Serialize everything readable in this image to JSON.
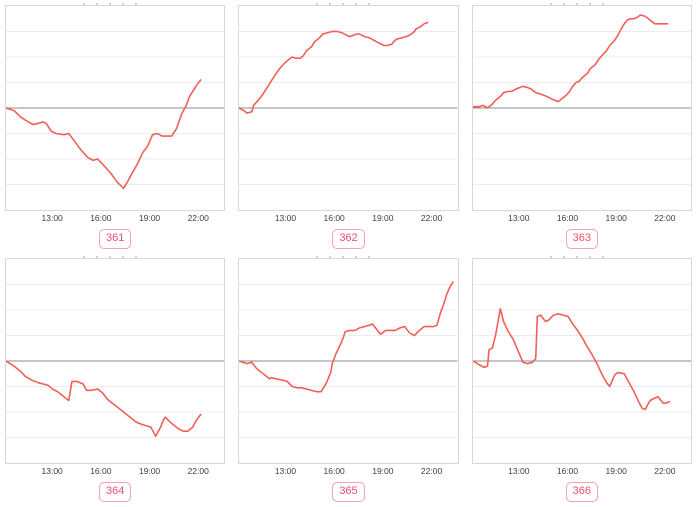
{
  "colors": {
    "line": "#f05f58",
    "gridline": "#ededed",
    "baseline": "#8c8c8c",
    "panel_border": "#d8d8d8",
    "tick_label": "#3d3d3d",
    "badge_text": "#e8506a",
    "badge_border": "#f5a0b8",
    "background": "#ffffff"
  },
  "layout_note": "grid of 6 sparkline charts, 3 columns x 2 rows, each with clipped title above, x time axis, mid gray baseline, red series line, pink numbered badge below",
  "chart_data": [
    {
      "type": "line",
      "label": "361",
      "x_tick_labels": [
        "13:00",
        "16:00",
        "19:00",
        "22:00"
      ],
      "x_ticks_hours": [
        13,
        16,
        19,
        22
      ],
      "x_range_hours": [
        10.0,
        23.5
      ],
      "y_unit": "grid divisions relative to baseline (no y labels visible)",
      "ylim": [
        -4,
        4
      ],
      "baseline": 0,
      "grid": "horizontal only, 8 divisions, baseline darker",
      "legend": "none",
      "points": [
        [
          10.1,
          0
        ],
        [
          10.6,
          -0.1
        ],
        [
          11.0,
          -0.35
        ],
        [
          11.5,
          -0.55
        ],
        [
          11.8,
          -0.65
        ],
        [
          12.1,
          -0.6
        ],
        [
          12.4,
          -0.55
        ],
        [
          12.6,
          -0.6
        ],
        [
          12.9,
          -0.9
        ],
        [
          13.2,
          -1.0
        ],
        [
          13.7,
          -1.05
        ],
        [
          14.0,
          -1.0
        ],
        [
          14.3,
          -1.25
        ],
        [
          14.7,
          -1.6
        ],
        [
          15.2,
          -1.95
        ],
        [
          15.5,
          -2.05
        ],
        [
          15.8,
          -2.0
        ],
        [
          16.1,
          -2.2
        ],
        [
          16.6,
          -2.55
        ],
        [
          17.0,
          -2.9
        ],
        [
          17.4,
          -3.15
        ],
        [
          17.6,
          -2.95
        ],
        [
          17.9,
          -2.6
        ],
        [
          18.3,
          -2.15
        ],
        [
          18.6,
          -1.75
        ],
        [
          18.9,
          -1.5
        ],
        [
          19.2,
          -1.05
        ],
        [
          19.5,
          -1.0
        ],
        [
          19.8,
          -1.1
        ],
        [
          20.1,
          -1.1
        ],
        [
          20.4,
          -1.1
        ],
        [
          20.7,
          -0.8
        ],
        [
          21.0,
          -0.25
        ],
        [
          21.3,
          0.1
        ],
        [
          21.5,
          0.45
        ],
        [
          21.8,
          0.75
        ],
        [
          22.0,
          0.95
        ],
        [
          22.2,
          1.1
        ]
      ]
    },
    {
      "type": "line",
      "label": "362",
      "x_tick_labels": [
        "13:00",
        "16:00",
        "19:00",
        "22:00"
      ],
      "x_ticks_hours": [
        13,
        16,
        19,
        22
      ],
      "x_range_hours": [
        10.0,
        23.5
      ],
      "y_unit": "grid divisions relative to baseline (no y labels visible)",
      "ylim": [
        -4,
        4
      ],
      "baseline": 0,
      "grid": "horizontal only, 8 divisions, baseline darker",
      "legend": "none",
      "points": [
        [
          10.1,
          0
        ],
        [
          10.4,
          -0.1
        ],
        [
          10.6,
          -0.2
        ],
        [
          10.9,
          -0.15
        ],
        [
          11.0,
          0.1
        ],
        [
          11.3,
          0.3
        ],
        [
          11.6,
          0.55
        ],
        [
          11.8,
          0.75
        ],
        [
          12.1,
          1.05
        ],
        [
          12.4,
          1.35
        ],
        [
          12.7,
          1.6
        ],
        [
          13.0,
          1.8
        ],
        [
          13.2,
          1.9
        ],
        [
          13.4,
          2.0
        ],
        [
          13.6,
          1.95
        ],
        [
          13.9,
          1.95
        ],
        [
          14.1,
          2.05
        ],
        [
          14.3,
          2.25
        ],
        [
          14.6,
          2.4
        ],
        [
          14.8,
          2.6
        ],
        [
          15.1,
          2.75
        ],
        [
          15.3,
          2.9
        ],
        [
          15.6,
          2.95
        ],
        [
          15.9,
          3.0
        ],
        [
          16.2,
          3.0
        ],
        [
          16.5,
          2.95
        ],
        [
          16.8,
          2.85
        ],
        [
          17.0,
          2.8
        ],
        [
          17.2,
          2.85
        ],
        [
          17.4,
          2.9
        ],
        [
          17.6,
          2.9
        ],
        [
          17.9,
          2.8
        ],
        [
          18.2,
          2.75
        ],
        [
          18.5,
          2.65
        ],
        [
          18.8,
          2.55
        ],
        [
          19.1,
          2.45
        ],
        [
          19.3,
          2.45
        ],
        [
          19.6,
          2.5
        ],
        [
          19.7,
          2.6
        ],
        [
          19.9,
          2.7
        ],
        [
          20.2,
          2.75
        ],
        [
          20.5,
          2.8
        ],
        [
          20.8,
          2.9
        ],
        [
          21.0,
          3.0
        ],
        [
          21.1,
          3.1
        ],
        [
          21.4,
          3.2
        ],
        [
          21.6,
          3.3
        ],
        [
          21.8,
          3.35
        ]
      ]
    },
    {
      "type": "line",
      "label": "363",
      "x_tick_labels": [
        "13:00",
        "16:00",
        "19:00",
        "22:00"
      ],
      "x_ticks_hours": [
        13,
        16,
        19,
        22
      ],
      "x_range_hours": [
        10.0,
        23.5
      ],
      "y_unit": "grid divisions relative to baseline (no y labels visible)",
      "ylim": [
        -4,
        4
      ],
      "baseline": 0,
      "grid": "horizontal only, 8 divisions, baseline darker",
      "legend": "none",
      "points": [
        [
          10.1,
          0.05
        ],
        [
          10.5,
          0.05
        ],
        [
          10.7,
          0.1
        ],
        [
          10.9,
          0.05
        ],
        [
          11.0,
          0
        ],
        [
          11.3,
          0.15
        ],
        [
          11.5,
          0.3
        ],
        [
          11.8,
          0.45
        ],
        [
          12.0,
          0.6
        ],
        [
          12.3,
          0.65
        ],
        [
          12.5,
          0.65
        ],
        [
          12.8,
          0.75
        ],
        [
          13.0,
          0.8
        ],
        [
          13.2,
          0.85
        ],
        [
          13.5,
          0.8
        ],
        [
          13.7,
          0.75
        ],
        [
          14.0,
          0.6
        ],
        [
          14.3,
          0.55
        ],
        [
          14.7,
          0.45
        ],
        [
          15.0,
          0.35
        ],
        [
          15.2,
          0.3
        ],
        [
          15.4,
          0.25
        ],
        [
          15.6,
          0.35
        ],
        [
          15.9,
          0.5
        ],
        [
          16.1,
          0.65
        ],
        [
          16.3,
          0.85
        ],
        [
          16.5,
          1.0
        ],
        [
          16.7,
          1.05
        ],
        [
          16.9,
          1.2
        ],
        [
          17.2,
          1.35
        ],
        [
          17.4,
          1.55
        ],
        [
          17.7,
          1.7
        ],
        [
          17.9,
          1.9
        ],
        [
          18.1,
          2.05
        ],
        [
          18.4,
          2.25
        ],
        [
          18.6,
          2.45
        ],
        [
          18.9,
          2.65
        ],
        [
          19.1,
          2.85
        ],
        [
          19.3,
          3.1
        ],
        [
          19.5,
          3.3
        ],
        [
          19.7,
          3.45
        ],
        [
          19.9,
          3.5
        ],
        [
          20.1,
          3.5
        ],
        [
          20.3,
          3.55
        ],
        [
          20.5,
          3.65
        ],
        [
          20.8,
          3.6
        ],
        [
          21.0,
          3.5
        ],
        [
          21.2,
          3.4
        ],
        [
          21.4,
          3.3
        ],
        [
          21.7,
          3.3
        ],
        [
          21.9,
          3.3
        ],
        [
          22.2,
          3.3
        ]
      ]
    },
    {
      "type": "line",
      "label": "364",
      "x_tick_labels": [
        "13:00",
        "16:00",
        "19:00",
        "22:00"
      ],
      "x_ticks_hours": [
        13,
        16,
        19,
        22
      ],
      "x_range_hours": [
        10.0,
        23.5
      ],
      "y_unit": "grid divisions relative to baseline (no y labels visible)",
      "ylim": [
        -4,
        4
      ],
      "baseline": 0,
      "grid": "horizontal only, 8 divisions, baseline darker",
      "legend": "none",
      "points": [
        [
          10.1,
          0
        ],
        [
          10.6,
          -0.2
        ],
        [
          11.0,
          -0.4
        ],
        [
          11.3,
          -0.6
        ],
        [
          11.7,
          -0.75
        ],
        [
          12.1,
          -0.85
        ],
        [
          12.4,
          -0.9
        ],
        [
          12.7,
          -0.95
        ],
        [
          13.0,
          -1.1
        ],
        [
          13.3,
          -1.2
        ],
        [
          13.6,
          -1.35
        ],
        [
          13.9,
          -1.5
        ],
        [
          14.0,
          -1.55
        ],
        [
          14.2,
          -0.8
        ],
        [
          14.5,
          -0.8
        ],
        [
          14.9,
          -0.9
        ],
        [
          15.1,
          -1.15
        ],
        [
          15.4,
          -1.15
        ],
        [
          15.8,
          -1.1
        ],
        [
          16.1,
          -1.25
        ],
        [
          16.4,
          -1.5
        ],
        [
          16.7,
          -1.65
        ],
        [
          17.0,
          -1.8
        ],
        [
          17.3,
          -1.95
        ],
        [
          17.6,
          -2.1
        ],
        [
          17.9,
          -2.25
        ],
        [
          18.2,
          -2.4
        ],
        [
          18.6,
          -2.5
        ],
        [
          18.9,
          -2.55
        ],
        [
          19.1,
          -2.6
        ],
        [
          19.4,
          -2.95
        ],
        [
          19.7,
          -2.6
        ],
        [
          19.9,
          -2.3
        ],
        [
          20.0,
          -2.2
        ],
        [
          20.3,
          -2.4
        ],
        [
          20.5,
          -2.5
        ],
        [
          20.8,
          -2.65
        ],
        [
          21.1,
          -2.75
        ],
        [
          21.4,
          -2.75
        ],
        [
          21.7,
          -2.6
        ],
        [
          21.9,
          -2.35
        ],
        [
          22.2,
          -2.1
        ]
      ]
    },
    {
      "type": "line",
      "label": "365",
      "x_tick_labels": [
        "13:00",
        "16:00",
        "19:00",
        "22:00"
      ],
      "x_ticks_hours": [
        13,
        16,
        19,
        22
      ],
      "x_range_hours": [
        10.0,
        23.5
      ],
      "y_unit": "grid divisions relative to baseline (no y labels visible)",
      "ylim": [
        -4,
        4
      ],
      "baseline": 0,
      "grid": "horizontal only, 8 divisions, baseline darker",
      "legend": "none",
      "points": [
        [
          10.1,
          0
        ],
        [
          10.6,
          -0.1
        ],
        [
          10.9,
          -0.05
        ],
        [
          11.2,
          -0.3
        ],
        [
          11.7,
          -0.55
        ],
        [
          12.0,
          -0.7
        ],
        [
          12.1,
          -0.65
        ],
        [
          12.4,
          -0.7
        ],
        [
          12.8,
          -0.75
        ],
        [
          13.1,
          -0.8
        ],
        [
          13.4,
          -1.0
        ],
        [
          13.7,
          -1.05
        ],
        [
          14.0,
          -1.05
        ],
        [
          14.3,
          -1.1
        ],
        [
          14.6,
          -1.15
        ],
        [
          14.9,
          -1.2
        ],
        [
          15.2,
          -1.2
        ],
        [
          15.5,
          -0.9
        ],
        [
          15.8,
          -0.45
        ],
        [
          15.9,
          -0.1
        ],
        [
          16.1,
          0.25
        ],
        [
          16.4,
          0.65
        ],
        [
          16.6,
          0.95
        ],
        [
          16.7,
          1.15
        ],
        [
          17.0,
          1.2
        ],
        [
          17.3,
          1.2
        ],
        [
          17.6,
          1.3
        ],
        [
          17.9,
          1.35
        ],
        [
          18.2,
          1.4
        ],
        [
          18.4,
          1.45
        ],
        [
          18.7,
          1.2
        ],
        [
          18.9,
          1.05
        ],
        [
          19.2,
          1.2
        ],
        [
          19.5,
          1.2
        ],
        [
          19.8,
          1.2
        ],
        [
          20.1,
          1.3
        ],
        [
          20.4,
          1.35
        ],
        [
          20.7,
          1.1
        ],
        [
          21.0,
          1.0
        ],
        [
          21.3,
          1.2
        ],
        [
          21.6,
          1.35
        ],
        [
          21.9,
          1.35
        ],
        [
          22.2,
          1.35
        ],
        [
          22.4,
          1.4
        ],
        [
          22.6,
          1.85
        ],
        [
          22.8,
          2.2
        ],
        [
          23.0,
          2.6
        ],
        [
          23.2,
          2.9
        ],
        [
          23.4,
          3.1
        ]
      ]
    },
    {
      "type": "line",
      "label": "366",
      "x_tick_labels": [
        "13:00",
        "16:00",
        "19:00",
        "22:00"
      ],
      "x_ticks_hours": [
        13,
        16,
        19,
        22
      ],
      "x_range_hours": [
        10.0,
        23.5
      ],
      "y_unit": "grid divisions relative to baseline (no y labels visible)",
      "ylim": [
        -4,
        4
      ],
      "baseline": 0,
      "grid": "horizontal only, 8 divisions, baseline darker",
      "legend": "none",
      "points": [
        [
          10.1,
          0
        ],
        [
          10.5,
          -0.15
        ],
        [
          10.8,
          -0.25
        ],
        [
          11.0,
          -0.2
        ],
        [
          11.1,
          0.45
        ],
        [
          11.3,
          0.5
        ],
        [
          11.5,
          1.0
        ],
        [
          11.8,
          2.05
        ],
        [
          12.0,
          1.55
        ],
        [
          12.3,
          1.15
        ],
        [
          12.6,
          0.85
        ],
        [
          12.9,
          0.4
        ],
        [
          13.2,
          -0.05
        ],
        [
          13.5,
          -0.1
        ],
        [
          13.8,
          -0.05
        ],
        [
          14.0,
          0.1
        ],
        [
          14.1,
          1.75
        ],
        [
          14.3,
          1.8
        ],
        [
          14.6,
          1.55
        ],
        [
          14.8,
          1.6
        ],
        [
          15.1,
          1.8
        ],
        [
          15.4,
          1.85
        ],
        [
          15.7,
          1.8
        ],
        [
          16.0,
          1.75
        ],
        [
          16.3,
          1.45
        ],
        [
          16.6,
          1.2
        ],
        [
          16.9,
          0.9
        ],
        [
          17.2,
          0.55
        ],
        [
          17.5,
          0.25
        ],
        [
          17.8,
          -0.1
        ],
        [
          18.1,
          -0.5
        ],
        [
          18.4,
          -0.85
        ],
        [
          18.6,
          -1.0
        ],
        [
          18.9,
          -0.55
        ],
        [
          19.1,
          -0.45
        ],
        [
          19.5,
          -0.5
        ],
        [
          19.8,
          -0.85
        ],
        [
          20.1,
          -1.2
        ],
        [
          20.4,
          -1.6
        ],
        [
          20.6,
          -1.85
        ],
        [
          20.8,
          -1.9
        ],
        [
          21.1,
          -1.55
        ],
        [
          21.4,
          -1.45
        ],
        [
          21.6,
          -1.4
        ],
        [
          21.9,
          -1.65
        ],
        [
          22.1,
          -1.65
        ],
        [
          22.3,
          -1.6
        ]
      ]
    }
  ]
}
